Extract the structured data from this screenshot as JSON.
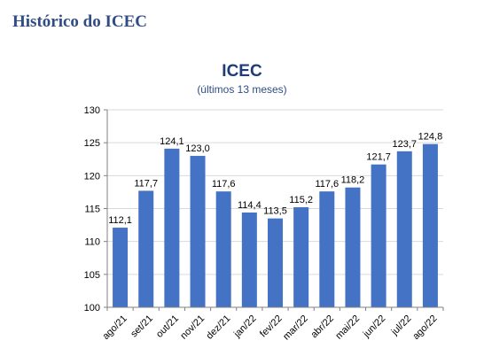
{
  "page": {
    "heading": "Histórico do ICEC"
  },
  "chart_data": {
    "type": "bar",
    "title": "ICEC",
    "subtitle": "(últimos 13 meses)",
    "xlabel": "",
    "ylabel": "",
    "categories": [
      "ago/21",
      "set/21",
      "out/21",
      "nov/21",
      "dez/21",
      "jan/22",
      "fev/22",
      "mar/22",
      "abr/22",
      "mai/22",
      "jun/22",
      "jul/22",
      "ago/22"
    ],
    "values": [
      112.1,
      117.7,
      124.1,
      123.0,
      117.6,
      114.4,
      113.5,
      115.2,
      117.6,
      118.2,
      121.7,
      123.7,
      124.8
    ],
    "data_labels": [
      "112,1",
      "117,7",
      "124,1",
      "123,0",
      "117,6",
      "114,4",
      "113,5",
      "115,2",
      "117,6",
      "118,2",
      "121,7",
      "123,7",
      "124,8"
    ],
    "ylim": [
      100,
      130
    ],
    "yticks": [
      "100",
      "105",
      "110",
      "115",
      "120",
      "125",
      "130"
    ],
    "grid": true,
    "legend": "none",
    "bar_color": "#4472c4",
    "grid_color": "#d9d9d9"
  }
}
